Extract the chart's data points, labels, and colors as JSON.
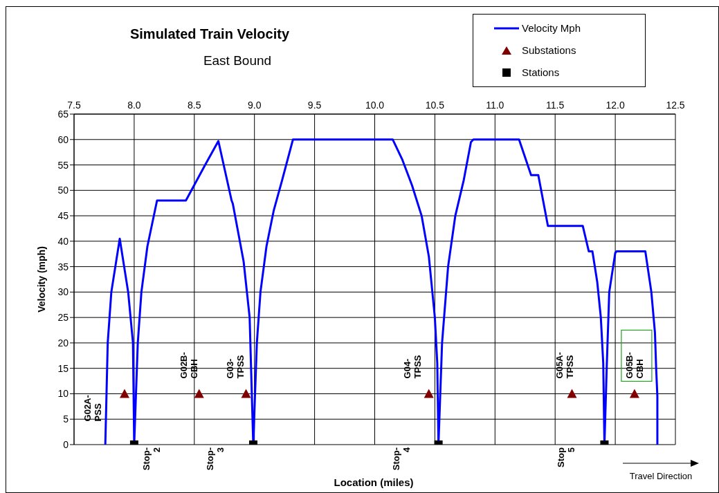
{
  "chart_data": {
    "type": "line",
    "title": "Simulated Train Velocity",
    "subtitle": "East Bound",
    "xlabel": "Location (miles)",
    "ylabel": "Velocity (mph)",
    "xlim": [
      7.5,
      12.5
    ],
    "xticks": [
      {
        "value": 7.5,
        "label": "7.5"
      },
      {
        "value": 8,
        "label": "8.0"
      },
      {
        "value": 8.5,
        "label": "8.5"
      },
      {
        "value": 9,
        "label": "9.0"
      },
      {
        "value": 9.5,
        "label": "9.5"
      },
      {
        "value": 10,
        "label": "10.0"
      },
      {
        "value": 10.5,
        "label": "10.5"
      },
      {
        "value": 11,
        "label": "11.0"
      },
      {
        "value": 11.5,
        "label": "11.5"
      },
      {
        "value": 12,
        "label": "12.0"
      },
      {
        "value": 12.5,
        "label": "12.5"
      }
    ],
    "ylim": [
      0,
      65
    ],
    "yticks": [
      0,
      5,
      10,
      15,
      20,
      25,
      30,
      35,
      40,
      45,
      50,
      55,
      60,
      65
    ],
    "grid": true,
    "legend": "top right",
    "series": [
      {
        "name": "Velocity Mph",
        "color": "#0000ff",
        "marker": "none",
        "line_style": "solid",
        "x": [
          7.76,
          7.78,
          7.81,
          7.88,
          7.95,
          7.99,
          8.0,
          8.03,
          8.06,
          8.11,
          8.19,
          8.43,
          8.59,
          8.7,
          8.81,
          8.82,
          8.91,
          8.96,
          8.99,
          9.02,
          9.05,
          9.1,
          9.16,
          9.23,
          9.32,
          10.15,
          10.23,
          10.31,
          10.39,
          10.45,
          10.5,
          10.52,
          10.53,
          10.56,
          10.61,
          10.67,
          10.74,
          10.8,
          10.82,
          11.2,
          11.3,
          11.36,
          11.44,
          11.73,
          11.78,
          11.81,
          11.85,
          11.88,
          11.9,
          11.91,
          11.93,
          11.95,
          12.0,
          12.01,
          12.25,
          12.3,
          12.33,
          12.34,
          12.35,
          12.35
        ],
        "values": [
          0,
          20,
          30,
          40.5,
          30,
          20,
          0,
          20,
          30,
          39,
          48,
          48,
          55,
          59.7,
          48,
          47.4,
          36,
          25,
          0,
          20,
          30,
          39,
          46,
          52,
          60,
          60,
          56,
          51,
          45,
          37,
          25,
          16,
          0,
          20,
          35,
          45,
          52,
          59.5,
          60,
          60,
          53,
          53,
          43,
          43,
          38,
          38,
          32,
          25,
          16,
          0,
          16,
          30,
          37.7,
          38,
          38,
          30,
          22,
          15,
          9.5,
          0
        ]
      },
      {
        "name": "Substations",
        "type": "scatter",
        "color": "#800000",
        "marker": "triangle",
        "x": [
          7.92,
          8.54,
          8.93,
          10.45,
          11.64,
          12.16
        ],
        "values": [
          10,
          10,
          10,
          10,
          10,
          10
        ]
      },
      {
        "name": "Stations",
        "type": "scatter",
        "color": "#000000",
        "marker": "square",
        "x": [
          8.0,
          8.99,
          10.53,
          11.91
        ],
        "values": [
          0,
          0,
          0,
          0
        ]
      }
    ],
    "annotations": [
      "G02A-PSS",
      "G02B-CBH",
      "G03-TPSS",
      "G04-TPSS",
      "G05A-TPSS",
      "G05B-CBH",
      "Stop-2",
      "Stop-3",
      "Stop-4",
      "Stop 5",
      "Travel Direction"
    ]
  }
}
